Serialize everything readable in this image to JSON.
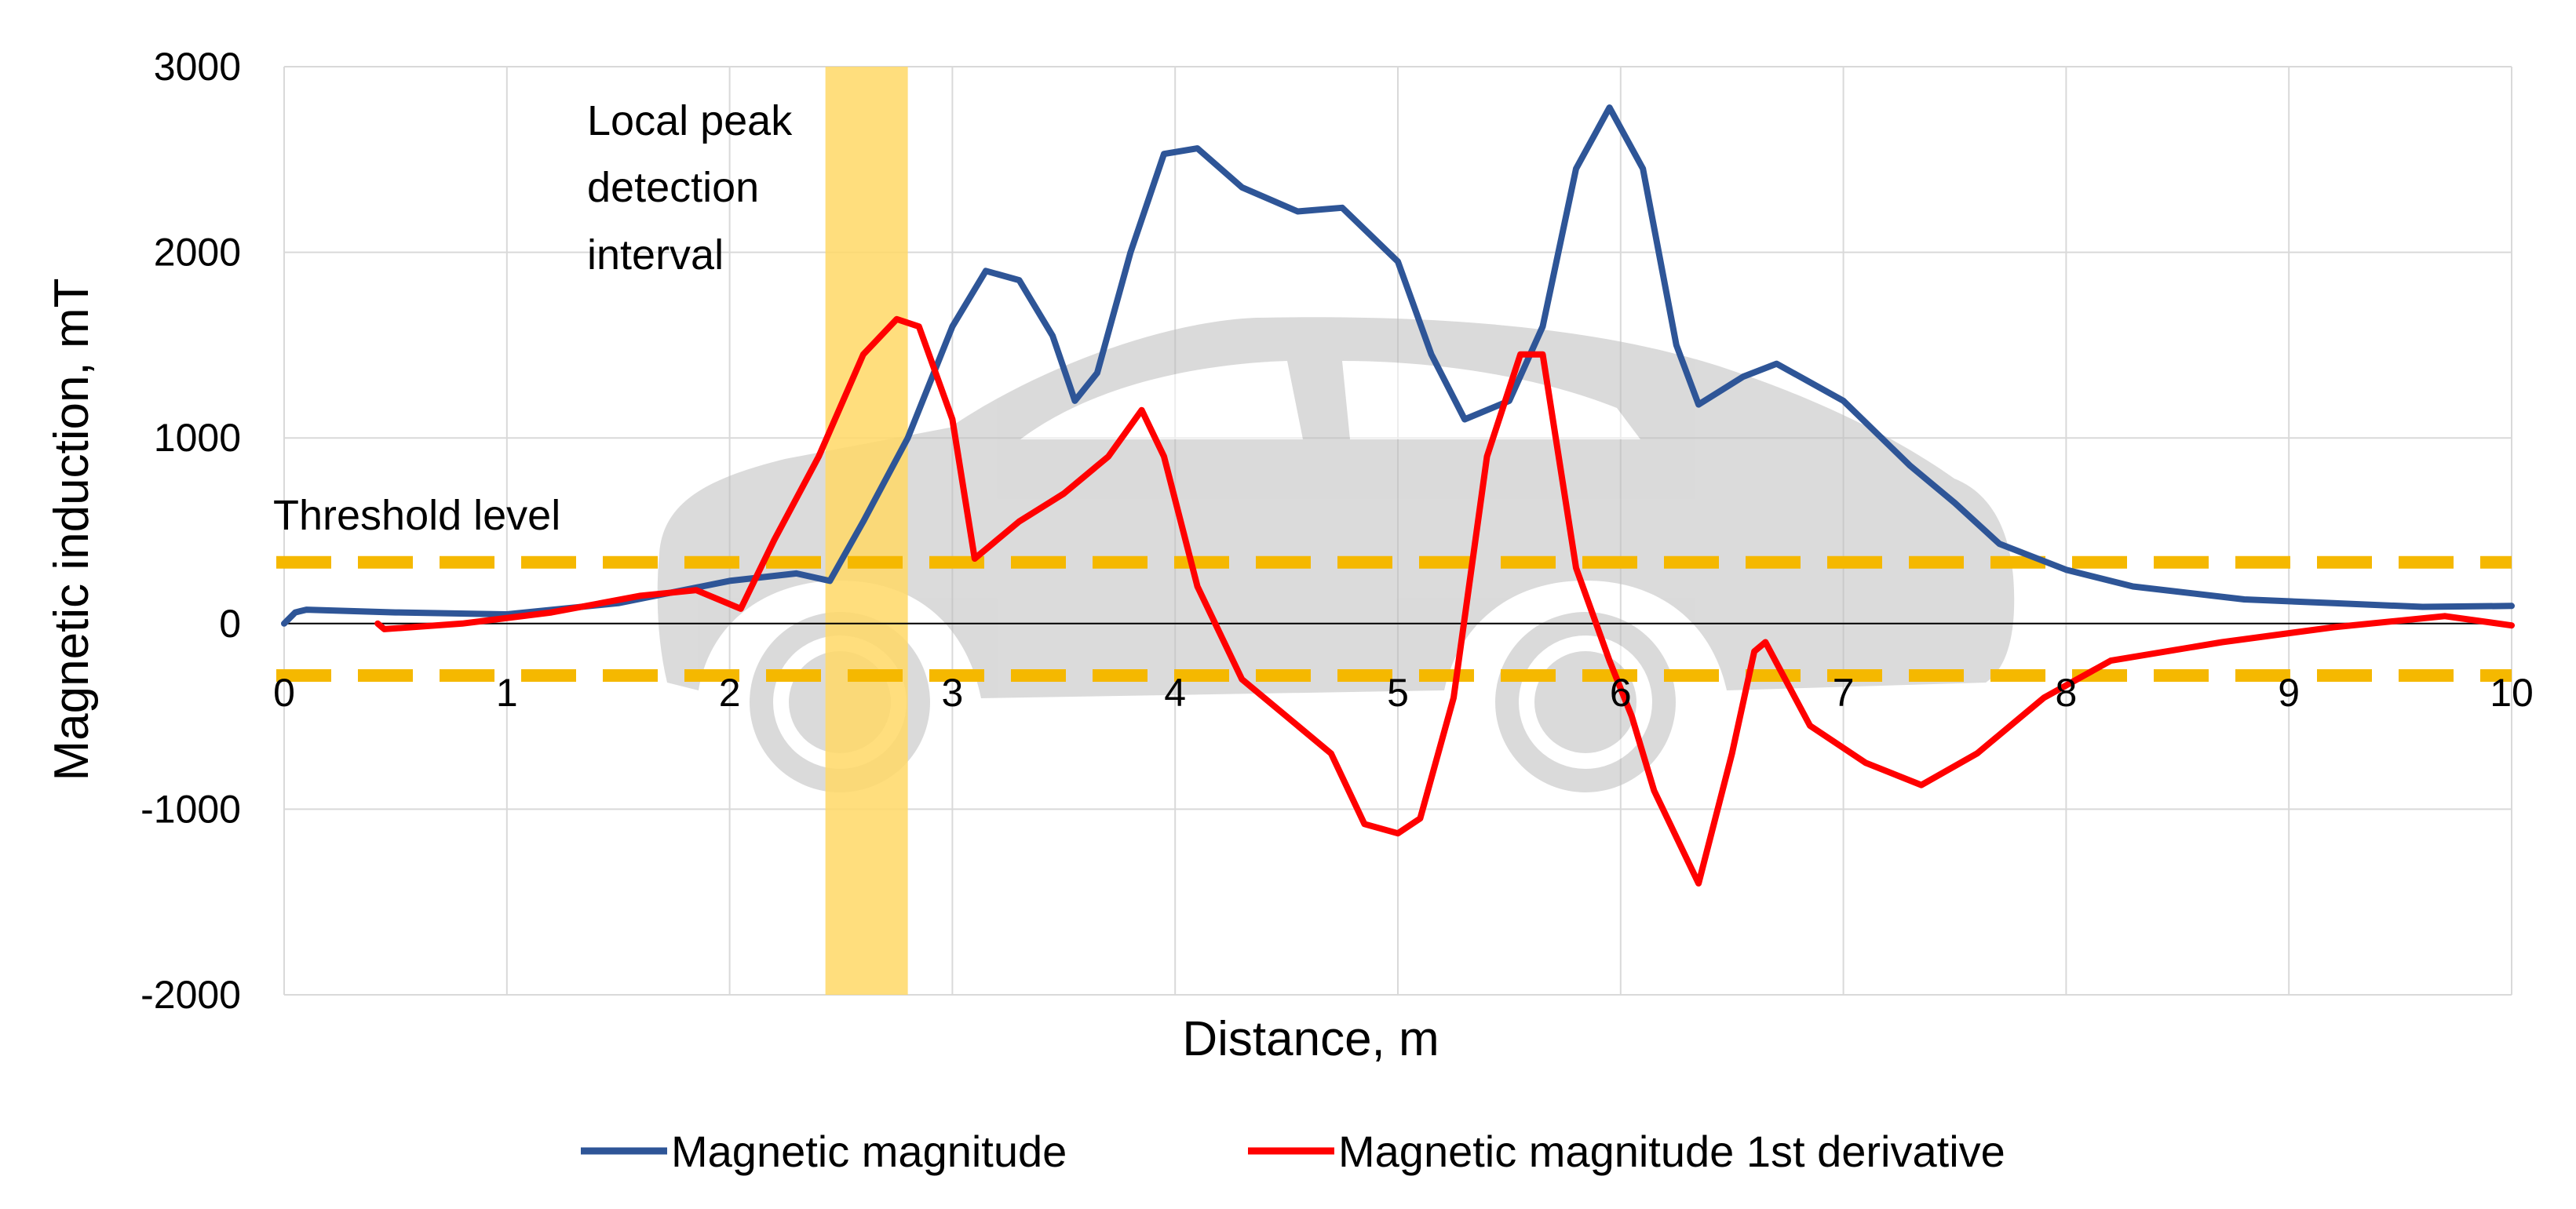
{
  "chart_data": {
    "type": "line",
    "xlabel": "Distance, m",
    "ylabel": "Magnetic induction, mT",
    "xlim": [
      0,
      10
    ],
    "ylim": [
      -2000,
      3000
    ],
    "x_ticks": [
      "0",
      "1",
      "2",
      "3",
      "4",
      "5",
      "6",
      "7",
      "8",
      "9",
      "10"
    ],
    "y_ticks": [
      "3000",
      "2000",
      "1000",
      "0",
      "-1000",
      "-2000"
    ],
    "grid": true,
    "legend_position": "bottom",
    "annotations": {
      "peak_interval_label": [
        "Local peak",
        "detection",
        "interval"
      ],
      "peak_interval_x": [
        2.43,
        2.8
      ],
      "threshold_label": "Threshold level",
      "threshold_upper": 330,
      "threshold_lower": -280
    },
    "background_icon": "car-silhouette",
    "colors": {
      "magnitude": "#2E5597",
      "derivative": "#FF0000",
      "threshold": "#F5B800",
      "interval": "#FFD866"
    },
    "series": [
      {
        "name": "Magnetic magnitude",
        "color": "#2E5597",
        "points": [
          [
            0,
            0
          ],
          [
            0.05,
            60
          ],
          [
            0.1,
            75
          ],
          [
            0.5,
            60
          ],
          [
            1.0,
            50
          ],
          [
            1.5,
            110
          ],
          [
            2.0,
            230
          ],
          [
            2.3,
            270
          ],
          [
            2.45,
            230
          ],
          [
            2.6,
            550
          ],
          [
            2.8,
            1000
          ],
          [
            3.0,
            1600
          ],
          [
            3.15,
            1900
          ],
          [
            3.3,
            1850
          ],
          [
            3.45,
            1550
          ],
          [
            3.55,
            1200
          ],
          [
            3.65,
            1350
          ],
          [
            3.8,
            2000
          ],
          [
            3.95,
            2530
          ],
          [
            4.1,
            2560
          ],
          [
            4.3,
            2350
          ],
          [
            4.55,
            2220
          ],
          [
            4.75,
            2240
          ],
          [
            5.0,
            1950
          ],
          [
            5.15,
            1450
          ],
          [
            5.3,
            1100
          ],
          [
            5.5,
            1200
          ],
          [
            5.65,
            1600
          ],
          [
            5.8,
            2450
          ],
          [
            5.95,
            2780
          ],
          [
            6.1,
            2450
          ],
          [
            6.25,
            1500
          ],
          [
            6.35,
            1180
          ],
          [
            6.55,
            1330
          ],
          [
            6.7,
            1400
          ],
          [
            7.0,
            1200
          ],
          [
            7.3,
            850
          ],
          [
            7.5,
            650
          ],
          [
            7.7,
            430
          ],
          [
            8.0,
            290
          ],
          [
            8.3,
            200
          ],
          [
            8.8,
            130
          ],
          [
            9.2,
            110
          ],
          [
            9.6,
            90
          ],
          [
            10.0,
            95
          ]
        ]
      },
      {
        "name": "Magnetic magnitude 1st derivative",
        "color": "#FF0000",
        "points": [
          [
            0.42,
            0
          ],
          [
            0.45,
            -30
          ],
          [
            0.8,
            0
          ],
          [
            1.2,
            60
          ],
          [
            1.6,
            150
          ],
          [
            1.85,
            180
          ],
          [
            2.05,
            80
          ],
          [
            2.2,
            450
          ],
          [
            2.4,
            900
          ],
          [
            2.6,
            1450
          ],
          [
            2.75,
            1640
          ],
          [
            2.85,
            1600
          ],
          [
            3.0,
            1100
          ],
          [
            3.1,
            350
          ],
          [
            3.3,
            550
          ],
          [
            3.5,
            700
          ],
          [
            3.7,
            900
          ],
          [
            3.85,
            1150
          ],
          [
            3.95,
            900
          ],
          [
            4.1,
            200
          ],
          [
            4.3,
            -300
          ],
          [
            4.5,
            -500
          ],
          [
            4.7,
            -700
          ],
          [
            4.85,
            -1080
          ],
          [
            5.0,
            -1130
          ],
          [
            5.1,
            -1050
          ],
          [
            5.25,
            -400
          ],
          [
            5.4,
            900
          ],
          [
            5.55,
            1450
          ],
          [
            5.65,
            1450
          ],
          [
            5.8,
            300
          ],
          [
            5.95,
            -200
          ],
          [
            6.05,
            -500
          ],
          [
            6.15,
            -900
          ],
          [
            6.35,
            -1400
          ],
          [
            6.5,
            -700
          ],
          [
            6.6,
            -150
          ],
          [
            6.65,
            -100
          ],
          [
            6.85,
            -550
          ],
          [
            7.1,
            -750
          ],
          [
            7.35,
            -870
          ],
          [
            7.6,
            -700
          ],
          [
            7.9,
            -400
          ],
          [
            8.2,
            -200
          ],
          [
            8.7,
            -100
          ],
          [
            9.2,
            -20
          ],
          [
            9.7,
            40
          ],
          [
            10.0,
            -10
          ]
        ]
      }
    ]
  }
}
